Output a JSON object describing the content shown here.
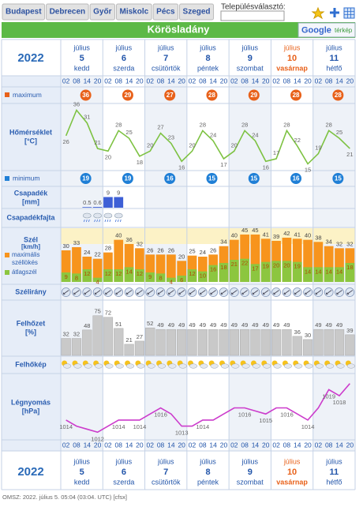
{
  "tabs": [
    "Budapest",
    "Debrecen",
    "Győr",
    "Miskolc",
    "Pécs",
    "Szeged"
  ],
  "location_picker": {
    "label": "Településválasztó:"
  },
  "header": {
    "title": "Körösladány",
    "map_button": {
      "brand": "Google",
      "label": "térkép"
    }
  },
  "year": "2022",
  "highlight_color": "#e8611a",
  "days": [
    {
      "month": "július",
      "date": 5,
      "weekday": "kedd"
    },
    {
      "month": "július",
      "date": 6,
      "weekday": "szerda"
    },
    {
      "month": "július",
      "date": 7,
      "weekday": "csütörtök"
    },
    {
      "month": "július",
      "date": 8,
      "weekday": "péntek"
    },
    {
      "month": "július",
      "date": 9,
      "weekday": "szombat"
    },
    {
      "month": "július",
      "date": 10,
      "weekday": "vasárnap",
      "highlight": true
    },
    {
      "month": "július",
      "date": 11,
      "weekday": "hétfő"
    }
  ],
  "hours": [
    "02",
    "08",
    "14",
    "20"
  ],
  "rows": {
    "maximum": "maximum",
    "temperature": [
      "Hőmérséklet",
      "[°C]"
    ],
    "minimum": "minimum",
    "precipitation": [
      "Csapadék",
      "[mm]"
    ],
    "precip_type": "Csapadékfajta",
    "wind": [
      "Szél",
      "[km/h]"
    ],
    "wind_direction": "Szélirány",
    "cloud": [
      "Felhőzet",
      "[%]"
    ],
    "cloud_image": "Felhőkép",
    "pressure": [
      "Légnyomás",
      "[hPa]"
    ]
  },
  "max_temps": [
    36,
    29,
    27,
    28,
    29,
    28,
    28
  ],
  "min_temps": [
    19,
    19,
    16,
    15,
    15,
    16,
    15
  ],
  "chart_data": [
    {
      "type": "line",
      "color": "#7dc242",
      "ylim": [
        13,
        38
      ],
      "values": [
        26,
        36,
        31,
        21,
        20,
        28,
        25,
        18,
        20,
        27,
        23,
        16,
        20,
        28,
        24,
        17,
        20,
        28,
        24,
        16,
        17,
        28,
        22,
        15,
        19,
        28,
        25,
        21
      ]
    },
    {
      "type": "bar",
      "color": "#3d5fd6",
      "ylim": [
        0,
        10
      ],
      "values": [
        null,
        null,
        0.5,
        0.6,
        9,
        9,
        null,
        null,
        null,
        null,
        null,
        null,
        null,
        null,
        null,
        null,
        null,
        null,
        null,
        null,
        null,
        null,
        null,
        null,
        null,
        null,
        null,
        null
      ]
    },
    {
      "type": "bar",
      "barmode": "overlay",
      "ylim": [
        0,
        48
      ],
      "series": [
        {
          "name": "maximális széllökés",
          "color": "#f7941d",
          "values": [
            30,
            33,
            24,
            22,
            28,
            40,
            36,
            32,
            26,
            26,
            26,
            20,
            25,
            24,
            26,
            34,
            40,
            45,
            45,
            41,
            39,
            42,
            41,
            40,
            38,
            34,
            32,
            32
          ]
        },
        {
          "name": "átlagszél",
          "color": "#8cc63f",
          "values": [
            9,
            8,
            12,
            4,
            12,
            12,
            14,
            12,
            9,
            8,
            4,
            6,
            12,
            10,
            16,
            18,
            21,
            22,
            17,
            19,
            20,
            20,
            19,
            14,
            14,
            14,
            14,
            18
          ]
        }
      ]
    },
    {
      "type": "bar",
      "color": "#c9c9c9",
      "ylim": [
        0,
        100
      ],
      "values": [
        32,
        32,
        48,
        75,
        72,
        51,
        21,
        27,
        52,
        49,
        49,
        49,
        49,
        49,
        49,
        49,
        49,
        49,
        49,
        49,
        49,
        49,
        36,
        30,
        49,
        49,
        49,
        39
      ]
    },
    {
      "type": "line",
      "color": "#cc3ccc",
      "ylim": [
        1011,
        1021
      ],
      "values": [
        1014,
        1013,
        1012.5,
        1012,
        1013,
        1014,
        1014,
        1014,
        1015,
        1016,
        1015,
        1013,
        1013,
        1014,
        1014,
        1015,
        1016,
        1016,
        1015.5,
        1015,
        1016,
        1016,
        1015,
        1014,
        1016,
        1019,
        1018,
        1020
      ],
      "value_labels": [
        "1014",
        null,
        null,
        "1012",
        null,
        "1014",
        null,
        "1014",
        null,
        "1016",
        null,
        "1013",
        null,
        "1014",
        null,
        null,
        null,
        "1016",
        null,
        "1015",
        null,
        "1016",
        null,
        "1014",
        null,
        "1019",
        "1018",
        null
      ]
    }
  ],
  "footer": "OMSZ: 2022. július 5. 05:04 (03:04. UTC) [cfsx]"
}
